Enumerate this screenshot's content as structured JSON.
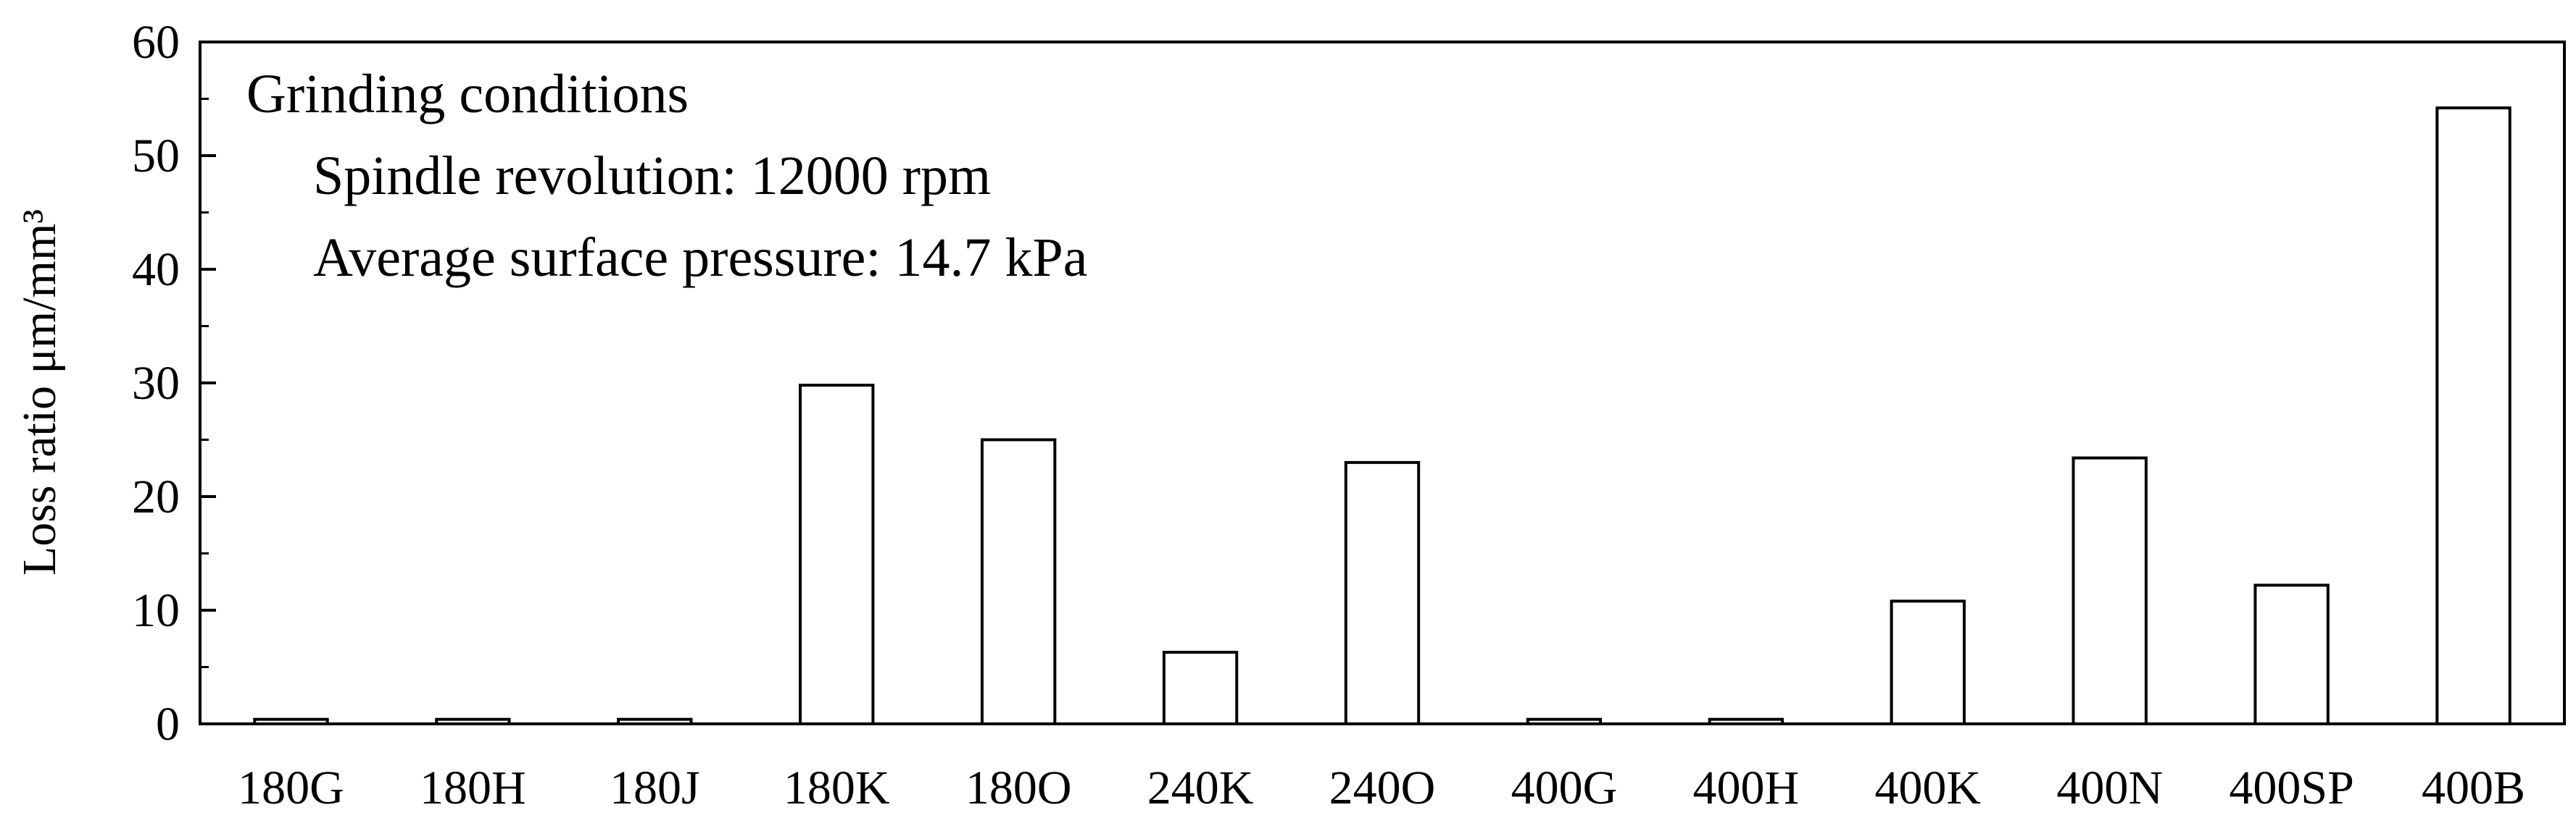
{
  "chart_data": {
    "type": "bar",
    "categories": [
      "180G",
      "180H",
      "180J",
      "180K",
      "180O",
      "240K",
      "240O",
      "400G",
      "400H",
      "400K",
      "400N",
      "400SP",
      "400B"
    ],
    "values": [
      0.4,
      0.4,
      0.4,
      29.8,
      25.0,
      6.3,
      23.0,
      0.4,
      0.4,
      10.8,
      23.4,
      12.2,
      54.2
    ],
    "title": "",
    "xlabel": "",
    "ylabel": "Loss ratio μm/mm³",
    "ylim": [
      0,
      60
    ],
    "yticks": [
      0,
      10,
      20,
      30,
      40,
      50,
      60
    ],
    "grid": false,
    "legend": "none",
    "bar_fill": "#ffffff",
    "bar_stroke": "#000000",
    "annotation": {
      "heading": "Grinding conditions",
      "lines": [
        "Spindle revolution: 12000 rpm",
        "Average surface pressure: 14.7 kPa"
      ]
    }
  }
}
